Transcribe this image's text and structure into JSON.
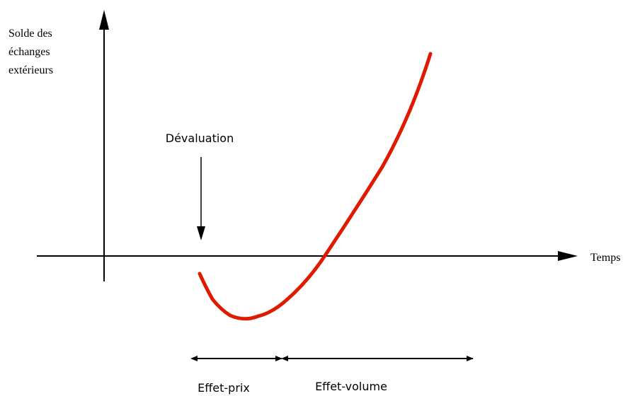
{
  "axes": {
    "y_label": [
      "Solde des",
      "échanges",
      "extérieurs"
    ],
    "x_label": "Temps"
  },
  "annotations": {
    "event": "Dévaluation",
    "phases": [
      "Effet-prix",
      "Effet-volume"
    ]
  }
}
